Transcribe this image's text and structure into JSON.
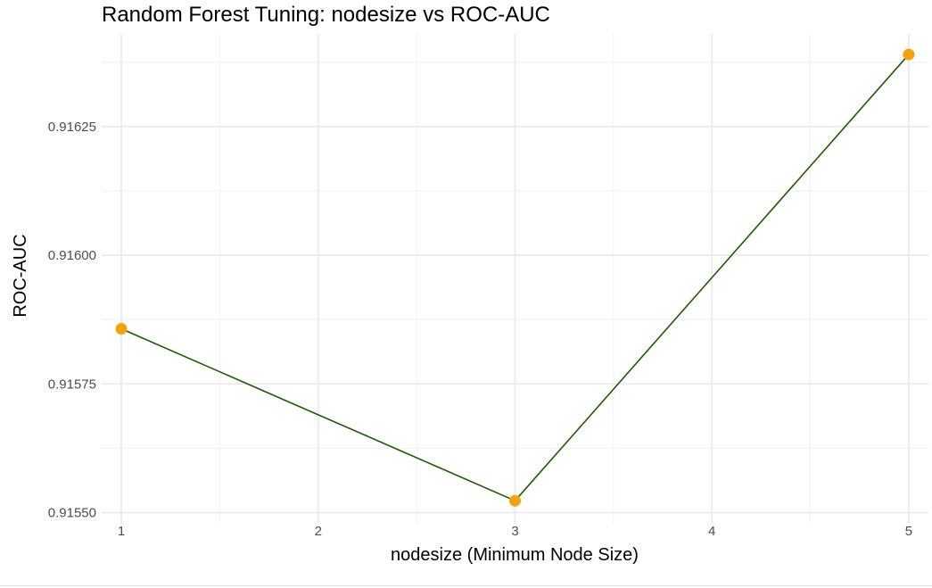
{
  "chart_data": {
    "type": "line",
    "title": "Random Forest Tuning: nodesize vs ROC-AUC",
    "xlabel": "nodesize (Minimum Node Size)",
    "ylabel": "ROC-AUC",
    "x": [
      1,
      3,
      5
    ],
    "series": [
      {
        "values": [
          0.915857,
          0.915523,
          0.91639
        ],
        "line_color": "#1a5c00",
        "point_color": "#f5a30a"
      }
    ],
    "xlim": [
      0.9,
      5.1
    ],
    "ylim": [
      0.91548,
      0.91643
    ],
    "x_ticks": [
      1,
      2,
      3,
      4,
      5
    ],
    "x_tick_labels": [
      "1",
      "2",
      "3",
      "4",
      "5"
    ],
    "y_ticks": [
      0.9155,
      0.91575,
      0.916,
      0.91625
    ],
    "y_tick_labels": [
      "0.91550",
      "0.91575",
      "0.91600",
      "0.91625"
    ],
    "grid": true,
    "theme": "minimal",
    "colors": {
      "grid_major": "#ebebeb",
      "grid_minor": "#f3f3f3",
      "background": "#ffffff"
    }
  }
}
